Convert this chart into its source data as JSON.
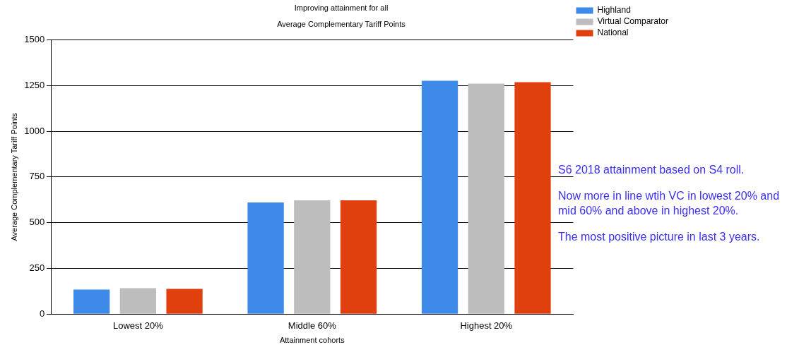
{
  "chart_data": {
    "type": "bar",
    "title": "Improving attainment for all",
    "subtitle": "Average Complementary Tariff Points",
    "xlabel": "Attainment cohorts",
    "ylabel": "Average Complementary Tariff Points",
    "categories": [
      "Lowest 20%",
      "Middle 60%",
      "Highest 20%"
    ],
    "series": [
      {
        "name": "Highland",
        "color": "#3d8ae8",
        "values": [
          134,
          610,
          1276
        ]
      },
      {
        "name": "Virtual Comparator",
        "color": "#bdbdbd",
        "values": [
          142,
          622,
          1260
        ]
      },
      {
        "name": "National",
        "color": "#e0400e",
        "values": [
          138,
          622,
          1268
        ]
      }
    ],
    "ylim": [
      0,
      1500
    ],
    "yticks": [
      0,
      250,
      500,
      750,
      1000,
      1250,
      1500
    ],
    "grid": "y",
    "legend": "top right",
    "annotations": [
      "S6 2018 attainment based on S4 roll.",
      "Now more in line wtih VC in lowest 20% and mid 60% and above in highest 20%.",
      "The most positive picture in last 3 years."
    ]
  }
}
